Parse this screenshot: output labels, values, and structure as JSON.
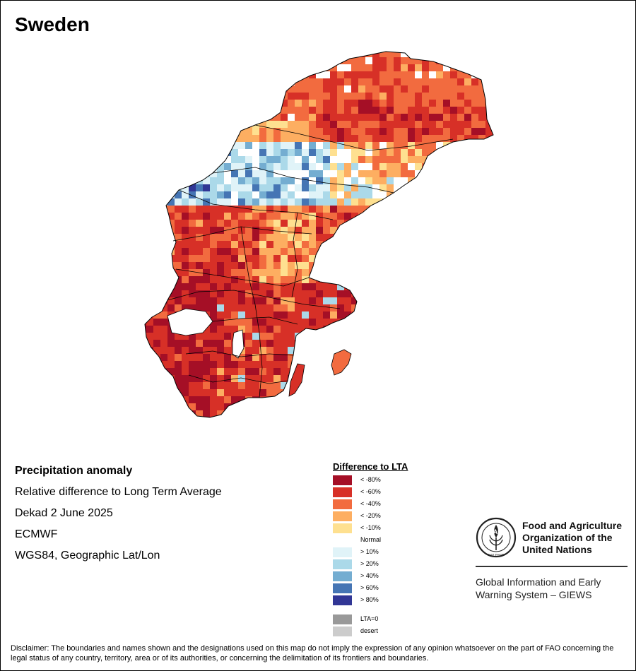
{
  "map": {
    "title": "Sweden",
    "colors": {
      "lt80": "#a50f26",
      "lt60": "#d73027",
      "lt40": "#f26b3f",
      "lt20": "#fdae61",
      "lt10": "#fee090",
      "normal": "#ffffff",
      "gt10": "#e0f3f8",
      "gt20": "#abd9e9",
      "gt40": "#74add1",
      "gt60": "#4575b4",
      "gt80": "#313695",
      "lta0": "#999999",
      "desert": "#cccccc",
      "border": "#000000"
    }
  },
  "info": {
    "title": "Precipitation anomaly",
    "line1": "Relative difference to Long Term Average",
    "line2": "Dekad 2 June 2025",
    "line3": "ECMWF",
    "line4": "WGS84, Geographic Lat/Lon"
  },
  "legend": {
    "title": "Difference to LTA",
    "items": [
      {
        "label": "< -80%",
        "color": "#a50f26"
      },
      {
        "label": "< -60%",
        "color": "#d73027"
      },
      {
        "label": "< -40%",
        "color": "#f26b3f"
      },
      {
        "label": "< -20%",
        "color": "#fdae61"
      },
      {
        "label": "< -10%",
        "color": "#fee090"
      },
      {
        "label": "Normal",
        "color": "#ffffff"
      },
      {
        "label": "> 10%",
        "color": "#e0f3f8"
      },
      {
        "label": "> 20%",
        "color": "#abd9e9"
      },
      {
        "label": "> 40%",
        "color": "#74add1"
      },
      {
        "label": "> 60%",
        "color": "#4575b4"
      },
      {
        "label": "> 80%",
        "color": "#313695"
      }
    ],
    "extra": [
      {
        "label": "LTA=0",
        "color": "#999999"
      },
      {
        "label": "desert",
        "color": "#cccccc"
      }
    ]
  },
  "org": {
    "logo_text": "FAO",
    "logo_motto": "FIAT PANIS",
    "name_line1": "Food and Agriculture",
    "name_line2": "Organization of the",
    "name_line3": "United Nations",
    "giews_line1": "Global Information and Early",
    "giews_line2": "Warning System – GIEWS"
  },
  "disclaimer": "Disclaimer: The boundaries and names shown and the designations used on this map do not imply the expression of any opinion whatsoever on the part of FAO concerning the legal status of any country, territory, area or of its authorities, or concerning the delimitation of its frontiers and boundaries."
}
